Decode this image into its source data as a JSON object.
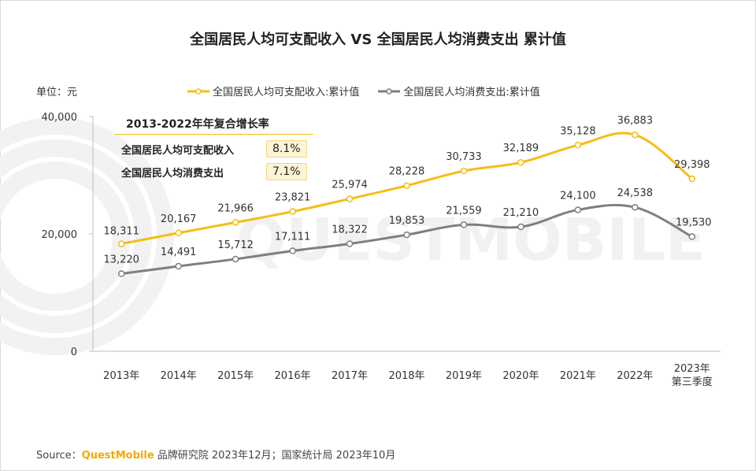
{
  "title": "全国居民人均可支配收入 VS 全国居民人均消费支出 累计值",
  "unit_label": "单位：元",
  "cagr_box": {
    "title": "2013-2022年年复合增长率",
    "rows": [
      {
        "label": "全国居民人均可支配收入",
        "value": "8.1%"
      },
      {
        "label": "全国居民人均消费支出",
        "value": "7.1%"
      }
    ]
  },
  "source": {
    "prefix": "Source：",
    "brand": "QuestMobile",
    "rest": " 品牌研究院 2023年12月；国家统计局 2023年10月"
  },
  "watermark": "QUESTMOBILE",
  "chart_data": {
    "type": "line",
    "title": "全国居民人均可支配收入 VS 全国居民人均消费支出 累计值",
    "ylabel": "单位：元",
    "ylim": [
      0,
      40000
    ],
    "yticks": [
      "0",
      "20,000",
      "40,000"
    ],
    "categories": [
      "2013年",
      "2014年",
      "2015年",
      "2016年",
      "2017年",
      "2018年",
      "2019年",
      "2020年",
      "2021年",
      "2022年",
      "2023年\n第三季度"
    ],
    "legend_position": "top",
    "grid": false,
    "series": [
      {
        "name": "全国居民人均可支配收入:累计值",
        "color": "#f6bd16",
        "values": [
          18311,
          20167,
          21966,
          23821,
          25974,
          28228,
          30733,
          32189,
          35128,
          36883,
          29398
        ],
        "labels": [
          "18,311",
          "20,167",
          "21,966",
          "23,821",
          "25,974",
          "28,228",
          "30,733",
          "32,189",
          "35,128",
          "36,883",
          "29,398"
        ]
      },
      {
        "name": "全国居民人均消费支出:累计值",
        "color": "#7f7f7f",
        "values": [
          13220,
          14491,
          15712,
          17111,
          18322,
          19853,
          21559,
          21210,
          24100,
          24538,
          19530
        ],
        "labels": [
          "13,220",
          "14,491",
          "15,712",
          "17,111",
          "18,322",
          "19,853",
          "21,559",
          "21,210",
          "24,100",
          "24,538",
          "19,530"
        ]
      }
    ]
  }
}
